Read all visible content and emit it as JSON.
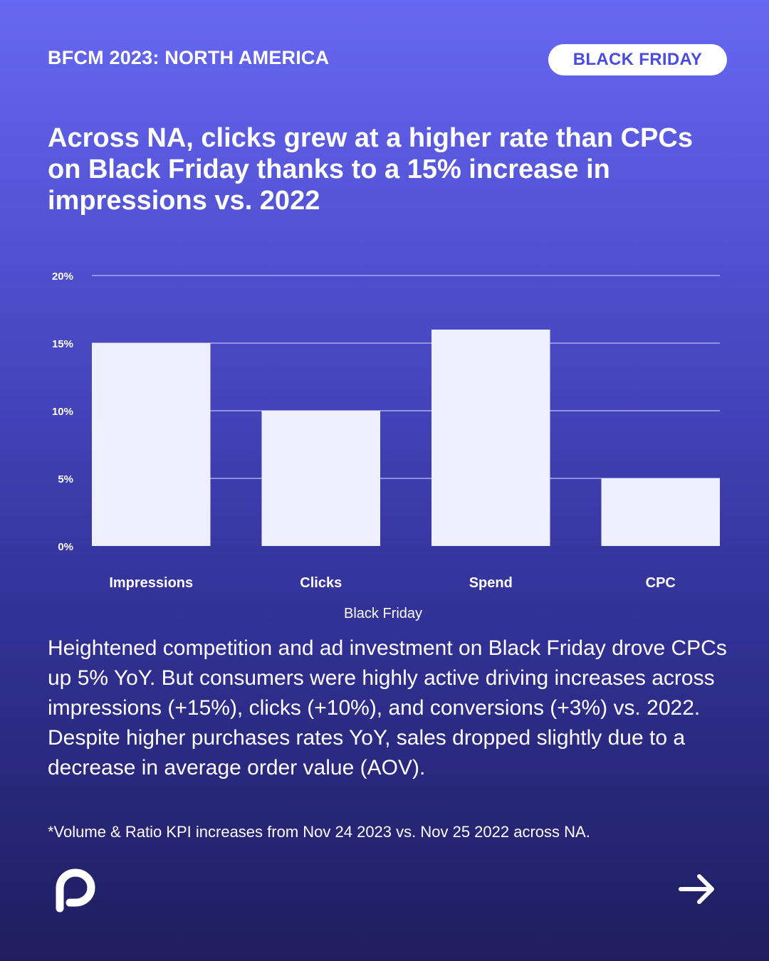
{
  "header": {
    "tag": "BFCM 2023: NORTH AMERICA",
    "pill_label": "BLACK FRIDAY"
  },
  "headline": "Across NA, clicks grew at a higher rate than CPCs on Black Friday thanks to a 15% increase in impressions vs. 2022",
  "chart_data": {
    "type": "bar",
    "categories": [
      "Impressions",
      "Clicks",
      "Spend",
      "CPC"
    ],
    "values": [
      15,
      10,
      16,
      5
    ],
    "y_ticks": [
      "0%",
      "5%",
      "10%",
      "15%",
      "20%"
    ],
    "ylim": [
      0,
      20
    ],
    "xlabel": "Black Friday",
    "ylabel": "",
    "grid": true,
    "bar_color": "#EEF0FF",
    "grid_color": "#A9A9F2"
  },
  "body": "Heightened competition and ad investment on Black Friday drove CPCs up 5% YoY. But consumers were highly active driving increases across  impressions (+15%), clicks (+10%), and conversions (+3%) vs. 2022. Despite higher purchases rates YoY, sales dropped slightly due to a decrease in average order value (AOV).",
  "footnote": "*Volume & Ratio KPI increases from Nov 24 2023 vs. Nov 25 2022 across NA.",
  "icons": {
    "logo": "brand-logo-icon",
    "next": "arrow-right-icon"
  },
  "colors": {
    "accent": "#4B4BE0",
    "text": "#FFFFFF"
  }
}
